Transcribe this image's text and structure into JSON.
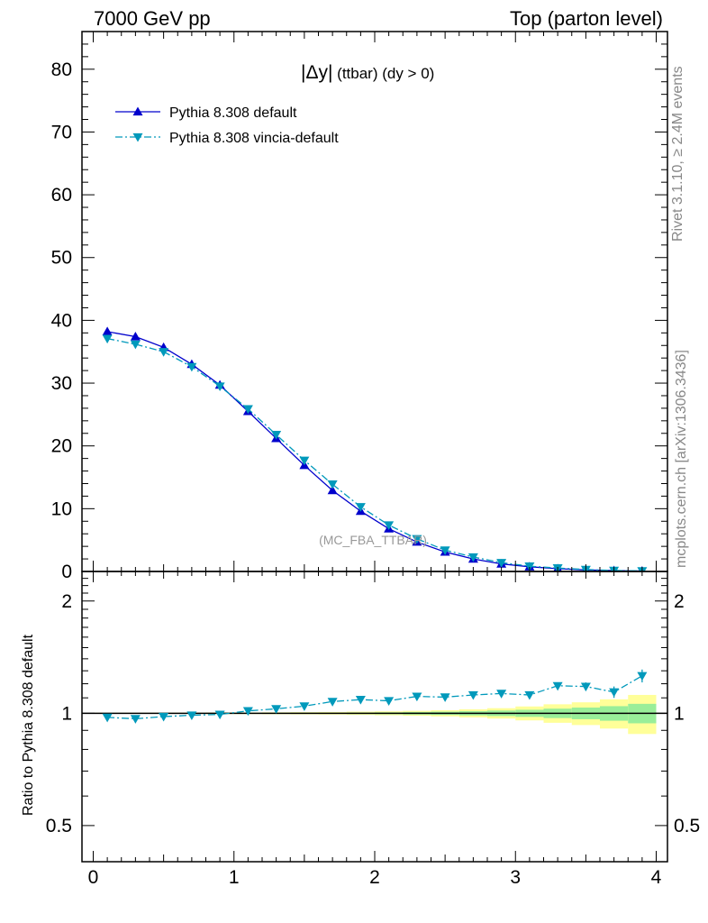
{
  "header": {
    "left": "7000 GeV pp",
    "right": "Top (parton level)"
  },
  "side_text": {
    "rivet": "Rivet 3.1.10, ≥ 2.4M events",
    "mcplots": "mcplots.cern.ch [arXiv:1306.3436]"
  },
  "colors": {
    "default": "#0000cc",
    "vincia": "#0099bb",
    "band_yellow": "#ffff99",
    "band_green": "#99ee99"
  },
  "chart_data": [
    {
      "type": "line",
      "title_main": "|Δy|",
      "title_rest": " (ttbar) (dy > 0)",
      "watermark": "(MC_FBA_TTBAR)",
      "ylim": [
        0,
        86
      ],
      "xlim": [
        -0.08,
        4.08
      ],
      "ytick_labels": [
        "0",
        "10",
        "20",
        "30",
        "40",
        "50",
        "60",
        "70",
        "80"
      ],
      "legend_position": "top-left",
      "x": [
        0.1,
        0.3,
        0.5,
        0.7,
        0.9,
        1.1,
        1.3,
        1.5,
        1.7,
        1.9,
        2.1,
        2.3,
        2.5,
        2.7,
        2.9,
        3.1,
        3.3,
        3.5,
        3.7,
        3.9
      ],
      "series": [
        {
          "name": "Pythia 8.308 default",
          "marker": "triangle-up",
          "line": "solid",
          "values": [
            38.2,
            37.4,
            35.7,
            33.0,
            29.7,
            25.5,
            21.2,
            16.9,
            12.9,
            9.6,
            6.8,
            4.7,
            3.1,
            2.0,
            1.2,
            0.75,
            0.45,
            0.25,
            0.14,
            0.07
          ]
        },
        {
          "name": "Pythia 8.308 vincia-default",
          "marker": "triangle-down",
          "line": "dash-dot",
          "values": [
            37.1,
            36.2,
            35.0,
            32.6,
            29.5,
            25.9,
            21.8,
            17.7,
            13.9,
            10.3,
            7.4,
            5.2,
            3.4,
            2.3,
            1.4,
            0.85,
            0.55,
            0.31,
            0.16,
            0.09
          ]
        }
      ]
    },
    {
      "type": "line",
      "ylabel": "Ratio to Pythia 8.308 default",
      "scale": "log",
      "ylim": [
        0.4,
        2.4
      ],
      "ytick_labels": [
        "0.5",
        "1",
        "2"
      ],
      "x": [
        0.1,
        0.3,
        0.5,
        0.7,
        0.9,
        1.1,
        1.3,
        1.5,
        1.7,
        1.9,
        2.1,
        2.3,
        2.5,
        2.7,
        2.9,
        3.1,
        3.3,
        3.5,
        3.7,
        3.9
      ],
      "xlabel": "",
      "xtick_labels": [
        "0",
        "1",
        "2",
        "3",
        "4"
      ],
      "series": [
        {
          "name": "Pythia 8.308 vincia-default",
          "values": [
            0.975,
            0.967,
            0.98,
            0.988,
            0.993,
            1.015,
            1.028,
            1.045,
            1.075,
            1.088,
            1.08,
            1.11,
            1.105,
            1.12,
            1.13,
            1.12,
            1.185,
            1.18,
            1.14,
            1.26
          ],
          "errors": [
            0.003,
            0.003,
            0.003,
            0.003,
            0.004,
            0.004,
            0.005,
            0.005,
            0.006,
            0.007,
            0.008,
            0.009,
            0.011,
            0.013,
            0.016,
            0.02,
            0.025,
            0.03,
            0.04,
            0.05
          ]
        }
      ],
      "band_outer_halfwidth": [
        0.003,
        0.003,
        0.004,
        0.004,
        0.005,
        0.005,
        0.006,
        0.007,
        0.008,
        0.01,
        0.012,
        0.015,
        0.019,
        0.025,
        0.032,
        0.043,
        0.057,
        0.07,
        0.09,
        0.12
      ],
      "band_inner_halfwidth": [
        0.002,
        0.002,
        0.002,
        0.002,
        0.003,
        0.003,
        0.003,
        0.004,
        0.004,
        0.005,
        0.006,
        0.008,
        0.01,
        0.013,
        0.017,
        0.022,
        0.029,
        0.036,
        0.045,
        0.06
      ]
    }
  ]
}
